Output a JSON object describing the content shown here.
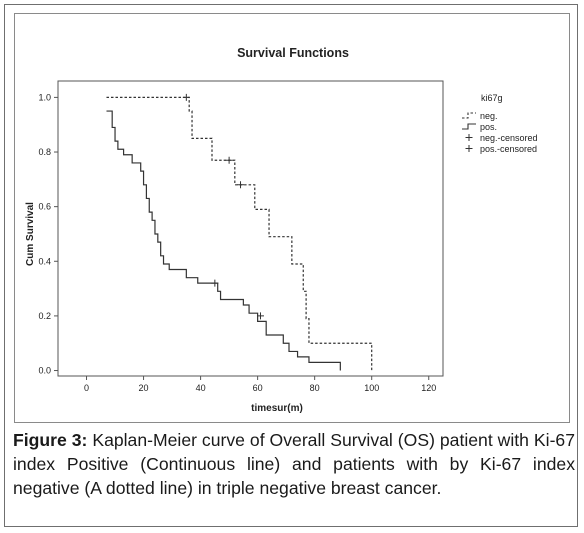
{
  "chart_data": {
    "type": "line",
    "step": true,
    "title": "Survival Functions",
    "xlabel": "timesur(m)",
    "ylabel": "Cum Survival",
    "xlim": [
      -10,
      125
    ],
    "ylim": [
      -0.02,
      1.06
    ],
    "xticks": [
      "0",
      "20",
      "40",
      "60",
      "80",
      "100",
      "120"
    ],
    "yticks": [
      "0.0",
      "0.2",
      "0.4",
      "0.6",
      "0.8",
      "1.0"
    ],
    "legend_title": "ki67g",
    "legend_position": "top-right",
    "legend": [
      "neg.",
      "pos.",
      "neg.-censored",
      "pos.-censored"
    ],
    "series": [
      {
        "name": "neg.",
        "style": "dotted",
        "color": "#333333",
        "x": [
          7,
          36,
          37,
          44,
          52,
          59,
          64,
          72,
          76,
          77,
          78,
          100
        ],
        "y": [
          1.0,
          0.95,
          0.85,
          0.77,
          0.68,
          0.59,
          0.49,
          0.39,
          0.29,
          0.19,
          0.1,
          0.0
        ],
        "censored": [
          [
            35,
            1.0
          ],
          [
            50,
            0.77
          ],
          [
            54,
            0.68
          ]
        ]
      },
      {
        "name": "pos.",
        "style": "solid",
        "color": "#333333",
        "x": [
          7,
          9,
          10,
          11,
          13,
          16,
          19,
          20,
          21,
          22,
          23,
          24,
          25,
          26,
          27,
          29,
          33,
          35,
          39,
          46,
          47,
          55,
          57,
          60,
          63,
          69,
          71,
          74,
          78,
          82,
          89
        ],
        "y": [
          0.95,
          0.89,
          0.84,
          0.81,
          0.79,
          0.76,
          0.73,
          0.68,
          0.63,
          0.58,
          0.55,
          0.5,
          0.47,
          0.42,
          0.39,
          0.37,
          0.37,
          0.34,
          0.32,
          0.29,
          0.26,
          0.24,
          0.21,
          0.18,
          0.13,
          0.1,
          0.07,
          0.05,
          0.03,
          0.03,
          0.0
        ],
        "censored": [
          [
            45,
            0.32
          ],
          [
            61,
            0.2
          ]
        ]
      }
    ]
  },
  "caption": {
    "label": "Figure 3:",
    "text": " Kaplan-Meier curve of Overall Survival (OS) patient with Ki-67 index Positive (Continuous line) and patients with by Ki-67 index negative (A dotted line) in triple negative breast cancer."
  }
}
